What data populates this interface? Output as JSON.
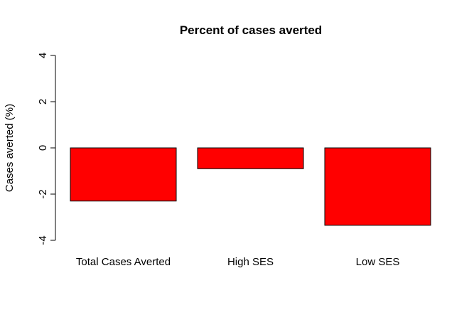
{
  "chart_data": {
    "type": "bar",
    "title": "Percent of cases averted",
    "xlabel": "",
    "ylabel": "Cases averted (%)",
    "categories": [
      "Total Cases Averted",
      "High SES",
      "Low SES"
    ],
    "values": [
      -2.3,
      -0.9,
      -3.35
    ],
    "ylim": [
      -4,
      4
    ],
    "yticks": [
      "-4",
      "-2",
      "0",
      "2",
      "4"
    ],
    "bar_color": "#ff0000",
    "bar_border_color": "#000000",
    "grid": false,
    "legend": "none"
  }
}
